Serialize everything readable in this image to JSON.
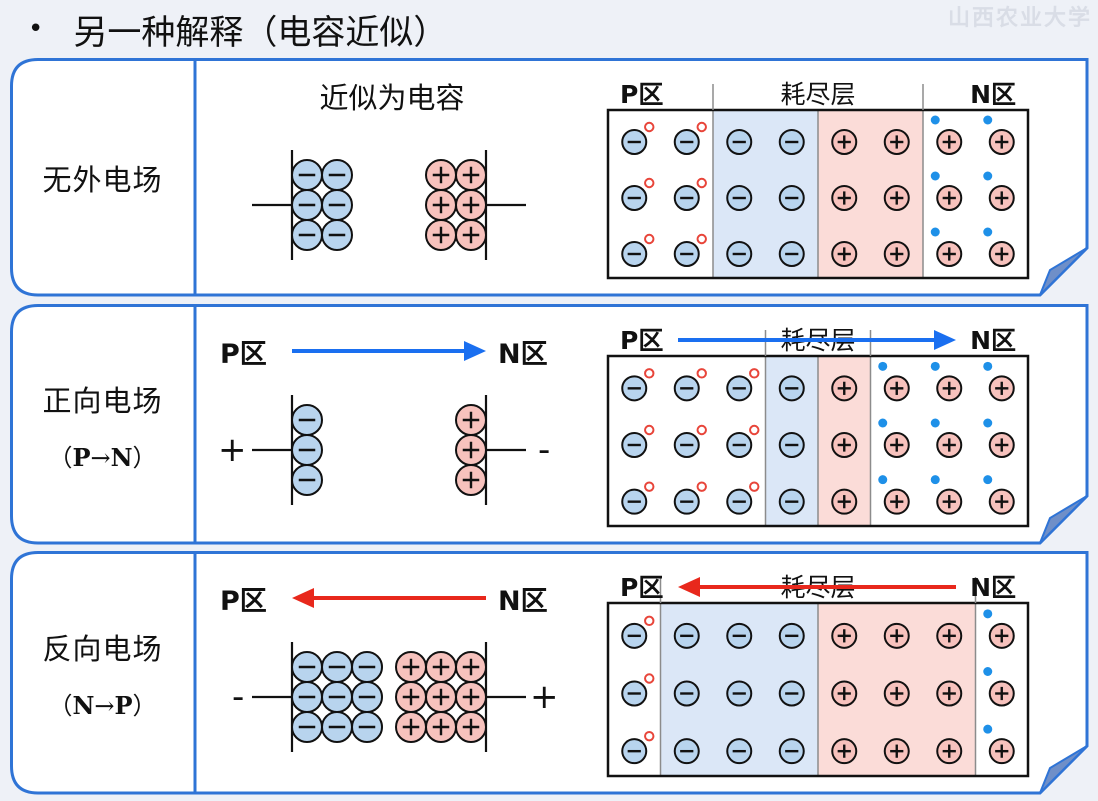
{
  "slide": {
    "title": "另一种解释（电容近似）",
    "watermark": "山西农业大学"
  },
  "labels": {
    "p_region": "P区",
    "depletion": "耗尽层",
    "n_region": "N区",
    "capacitor_approx": "近似为电容",
    "plus": "+",
    "minus": "-",
    "open_paren": "（",
    "close_paren": "）",
    "arrow": "→"
  },
  "panels": [
    {
      "id": "no-field",
      "title": "无外电场",
      "subtitle_from": "",
      "subtitle_to": "",
      "arrow_direction": "none",
      "left_terminal": "",
      "right_terminal": "",
      "cap_columns": 2,
      "cap_rows": 3,
      "slab_columns": [
        "p",
        "p",
        "dn",
        "dn",
        "dp",
        "dp",
        "n",
        "n"
      ]
    },
    {
      "id": "forward-field",
      "title": "正向电场",
      "subtitle_from": "P",
      "subtitle_to": "N",
      "arrow_direction": "right",
      "left_terminal": "+",
      "right_terminal": "-",
      "cap_columns": 1,
      "cap_rows": 3,
      "slab_columns": [
        "p",
        "p",
        "p",
        "dn",
        "dp",
        "n",
        "n",
        "n"
      ]
    },
    {
      "id": "reverse-field",
      "title": "反向电场",
      "subtitle_from": "N",
      "subtitle_to": "P",
      "arrow_direction": "left",
      "left_terminal": "-",
      "right_terminal": "+",
      "cap_columns": 3,
      "cap_rows": 3,
      "slab_columns": [
        "p",
        "dn",
        "dn",
        "dn",
        "dp",
        "dp",
        "dp",
        "n"
      ]
    }
  ],
  "colors": {
    "panel_border": "#2f74d6",
    "panel_fill": "#ffffff",
    "ion_neg_fill": "#b8d4ee",
    "ion_pos_fill": "#f7c2bd",
    "hole": "#e8453a",
    "electron": "#1e90e8",
    "depletion_neg_bg": "#dbe7f7",
    "depletion_pos_bg": "#fbdcd8",
    "forward_arrow": "#1a6ff0",
    "reverse_arrow": "#e8281c",
    "fold": "#6f8fc8"
  }
}
